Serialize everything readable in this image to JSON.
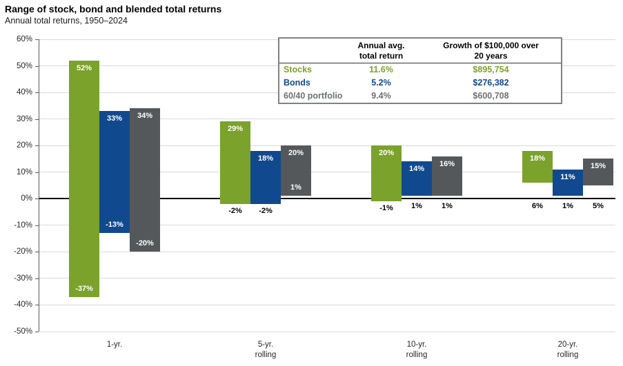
{
  "title": "Range of stock, bond and blended total returns",
  "subtitle": "Annual total returns, 1950–2024",
  "colors": {
    "stocks": "#7ba22b",
    "bonds": "#11498e",
    "blended": "#54585a",
    "blended_text": "#6d7072",
    "grid_line": "#d9d9d9",
    "zero_line": "#000000",
    "axis_text": "#262626",
    "table_border": "#808080",
    "bar_label_inside": "#ffffff",
    "bar_label_outside": "#000000"
  },
  "table": {
    "headers": [
      "Annual avg.\ntotal return",
      "Growth of $100,000 over\n20 years"
    ],
    "rows": [
      {
        "label": "Stocks",
        "avg": "11.6%",
        "growth": "$895,754",
        "color_key": "stocks"
      },
      {
        "label": "Bonds",
        "avg": "5.2%",
        "growth": "$276,382",
        "color_key": "bonds"
      },
      {
        "label": "60/40 portfolio",
        "avg": "9.4%",
        "growth": "$600,708",
        "color_key": "blended_text"
      }
    ]
  },
  "chart_data": {
    "type": "bar",
    "subtype": "floating-range-bars",
    "title": "Range of stock, bond and blended total returns",
    "subtitle": "Annual total returns, 1950–2024",
    "categories": [
      "1-yr.",
      "5-yr.\nrolling",
      "10-yr.\nrolling",
      "20-yr.\nrolling"
    ],
    "ylim": [
      -50,
      60
    ],
    "ytick_step": 10,
    "ytick_labels": [
      "60%",
      "50%",
      "40%",
      "30%",
      "20%",
      "10%",
      "0%",
      "-10%",
      "-20%",
      "-30%",
      "-40%",
      "-50%"
    ],
    "grid": true,
    "legend_position": "none",
    "value_suffix": "%",
    "series": [
      {
        "name": "Stocks",
        "color_key": "stocks",
        "ranges": [
          {
            "max": 52,
            "min": -37,
            "min_label_inside": true
          },
          {
            "max": 29,
            "min": -2,
            "min_label_inside": false
          },
          {
            "max": 20,
            "min": -1,
            "min_label_inside": false
          },
          {
            "max": 18,
            "min": 6,
            "min_label_inside": false
          }
        ]
      },
      {
        "name": "Bonds",
        "color_key": "bonds",
        "ranges": [
          {
            "max": 33,
            "min": -13,
            "min_label_inside": true
          },
          {
            "max": 18,
            "min": -2,
            "min_label_inside": false
          },
          {
            "max": 14,
            "min": 1,
            "min_label_inside": false
          },
          {
            "max": 11,
            "min": 1,
            "min_label_inside": false
          }
        ]
      },
      {
        "name": "60/40 portfolio",
        "color_key": "blended",
        "ranges": [
          {
            "max": 34,
            "min": -20,
            "min_label_inside": true
          },
          {
            "max": 20,
            "min": 1,
            "min_label_inside": true
          },
          {
            "max": 16,
            "min": 1,
            "min_label_inside": false
          },
          {
            "max": 15,
            "min": 5,
            "min_label_inside": false
          }
        ]
      }
    ]
  }
}
